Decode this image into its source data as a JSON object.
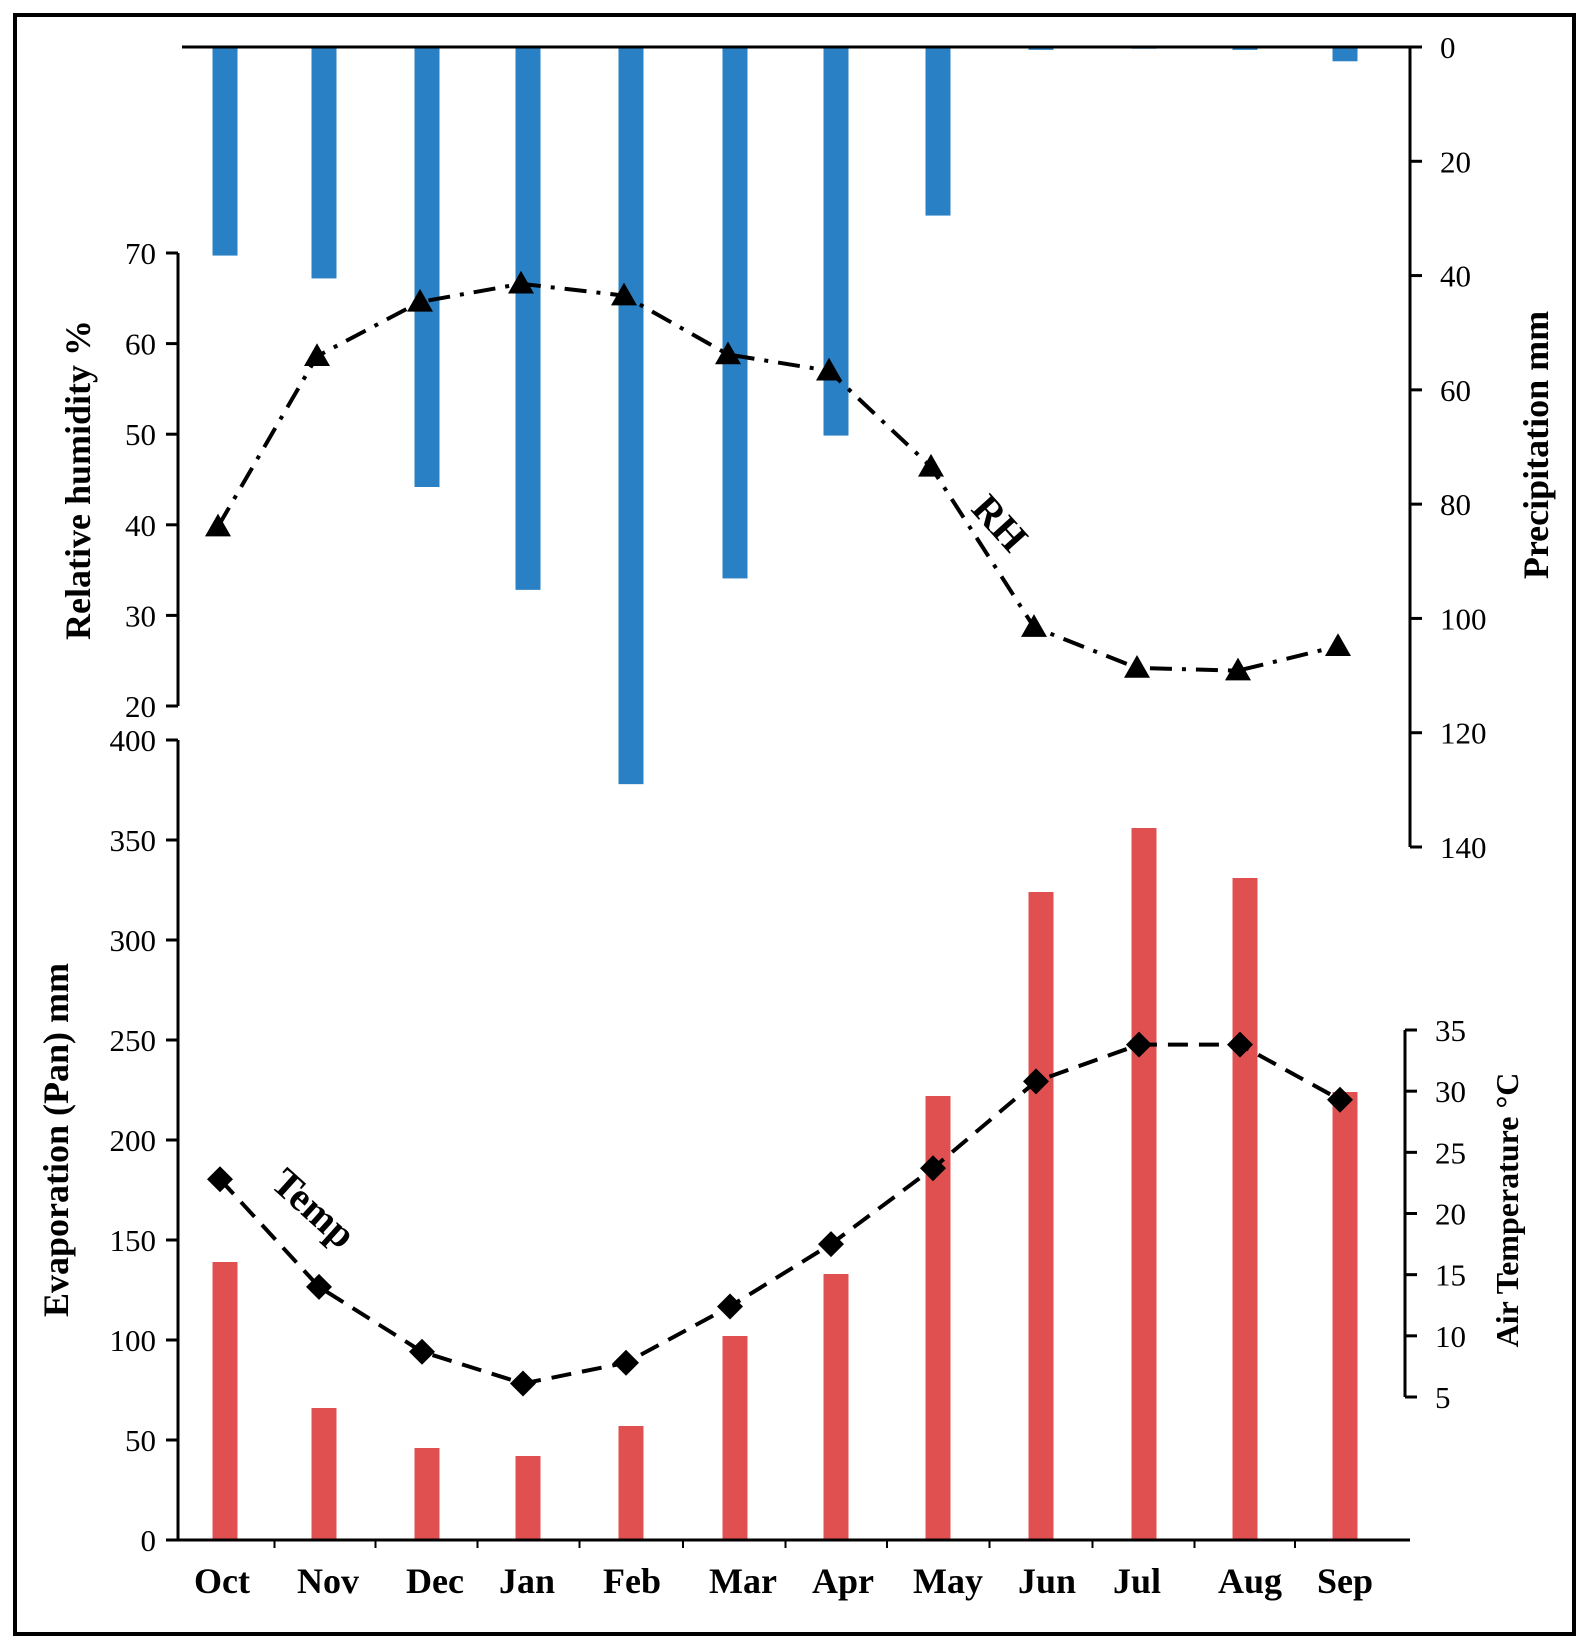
{
  "chart_data": {
    "type": "bar",
    "months": [
      "Oct",
      "Nov",
      "Dec",
      "Jan",
      "Feb",
      "Mar",
      "Apr",
      "May",
      "Jun",
      "Jul",
      "Aug",
      "Sep"
    ],
    "colors": {
      "precipitation": "#2a80c4",
      "evaporation": "#e05050",
      "lines": "#000000"
    },
    "precipitation": {
      "label": "Precipitation mm",
      "values": [
        36.5,
        40.5,
        77,
        95,
        129,
        93,
        68,
        29.5,
        0.5,
        0.3,
        0.5,
        2.5
      ],
      "range": [
        0,
        140
      ],
      "ticks": [
        "0",
        "20",
        "40",
        "60",
        "80",
        "100",
        "120",
        "140"
      ],
      "inverted": true
    },
    "relative_humidity": {
      "label": "Relative humidity %",
      "series_label": "RH",
      "values": [
        39.8,
        58.6,
        64.6,
        66.6,
        65.3,
        58.8,
        57,
        46.4,
        28.7,
        24.2,
        23.9,
        26.6
      ],
      "range": [
        20,
        70
      ],
      "ticks": [
        "20",
        "30",
        "40",
        "50",
        "60",
        "70"
      ]
    },
    "evaporation": {
      "label": "Evaporation (Pan) mm",
      "values": [
        139,
        66,
        46,
        42,
        57,
        102,
        133,
        222,
        324,
        356,
        331,
        224
      ],
      "range": [
        0,
        400
      ],
      "ticks": [
        "0",
        "50",
        "100",
        "150",
        "200",
        "250",
        "300",
        "350",
        "400"
      ]
    },
    "air_temperature": {
      "label": "Air Temperature °C",
      "series_label": "Temp",
      "values": [
        22.8,
        14,
        8.7,
        6.1,
        7.8,
        12.4,
        17.5,
        23.7,
        30.8,
        33.8,
        33.8,
        29.3
      ],
      "range": [
        5,
        35
      ],
      "ticks": [
        "5",
        "10",
        "15",
        "20",
        "25",
        "30",
        "35"
      ]
    }
  }
}
